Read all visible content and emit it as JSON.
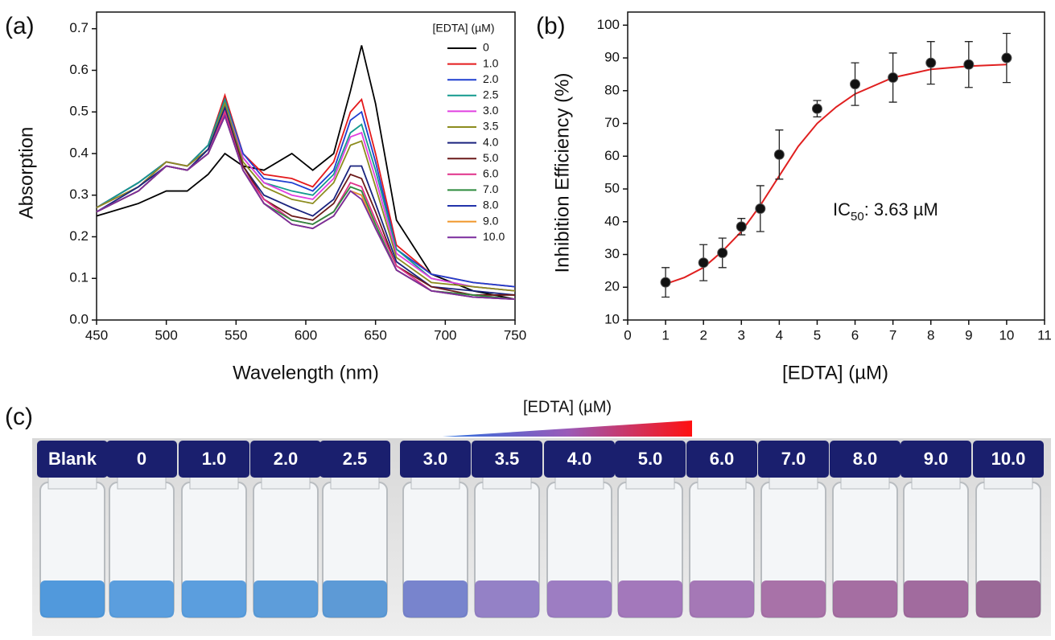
{
  "chart_data": [
    {
      "type": "line",
      "panel": "(a)",
      "x_label": "Wavelength (nm)",
      "y_label": "Absorption",
      "legend_title": "[EDTA] (µM)",
      "x": [
        450,
        480,
        500,
        515,
        530,
        542,
        555,
        570,
        590,
        605,
        620,
        632,
        640,
        650,
        665,
        690,
        720,
        750
      ],
      "xlim": [
        450,
        750
      ],
      "xticks": [
        450,
        500,
        550,
        600,
        650,
        700,
        750
      ],
      "ylim": [
        0,
        0.74
      ],
      "yticks": [
        {
          "value": 0,
          "label": "0.0"
        },
        0.1,
        0.2,
        0.3,
        0.4,
        0.5,
        0.6,
        0.7
      ],
      "series": [
        {
          "name": "0",
          "color": "#000000",
          "values": [
            0.25,
            0.28,
            0.31,
            0.31,
            0.35,
            0.4,
            0.37,
            0.36,
            0.4,
            0.36,
            0.4,
            0.55,
            0.66,
            0.52,
            0.24,
            0.11,
            0.07,
            0.05
          ]
        },
        {
          "name": "1.0",
          "color": "#e41a1c",
          "values": [
            0.27,
            0.33,
            0.38,
            0.37,
            0.42,
            0.54,
            0.4,
            0.35,
            0.34,
            0.32,
            0.38,
            0.5,
            0.53,
            0.4,
            0.18,
            0.11,
            0.09,
            0.08
          ]
        },
        {
          "name": "2.0",
          "color": "#1f3fd0",
          "values": [
            0.27,
            0.33,
            0.38,
            0.37,
            0.42,
            0.53,
            0.4,
            0.34,
            0.33,
            0.31,
            0.36,
            0.48,
            0.5,
            0.38,
            0.17,
            0.11,
            0.09,
            0.08
          ]
        },
        {
          "name": "2.5",
          "color": "#139a8e",
          "values": [
            0.27,
            0.33,
            0.38,
            0.37,
            0.42,
            0.53,
            0.39,
            0.33,
            0.31,
            0.3,
            0.35,
            0.45,
            0.47,
            0.36,
            0.17,
            0.1,
            0.08,
            0.07
          ]
        },
        {
          "name": "3.0",
          "color": "#e040e0",
          "values": [
            0.27,
            0.32,
            0.38,
            0.37,
            0.41,
            0.52,
            0.39,
            0.33,
            0.3,
            0.29,
            0.34,
            0.44,
            0.45,
            0.34,
            0.16,
            0.1,
            0.08,
            0.07
          ]
        },
        {
          "name": "3.5",
          "color": "#8c8c1e",
          "values": [
            0.27,
            0.32,
            0.38,
            0.37,
            0.41,
            0.52,
            0.38,
            0.32,
            0.29,
            0.28,
            0.33,
            0.42,
            0.43,
            0.32,
            0.15,
            0.09,
            0.08,
            0.07
          ]
        },
        {
          "name": "4.0",
          "color": "#1a237e",
          "values": [
            0.26,
            0.32,
            0.37,
            0.36,
            0.41,
            0.51,
            0.37,
            0.3,
            0.27,
            0.25,
            0.29,
            0.37,
            0.37,
            0.28,
            0.14,
            0.08,
            0.07,
            0.06
          ]
        },
        {
          "name": "5.0",
          "color": "#6b1a1a",
          "values": [
            0.26,
            0.31,
            0.37,
            0.36,
            0.4,
            0.5,
            0.37,
            0.29,
            0.25,
            0.24,
            0.28,
            0.35,
            0.34,
            0.26,
            0.13,
            0.08,
            0.06,
            0.06
          ]
        },
        {
          "name": "6.0",
          "color": "#e0308a",
          "values": [
            0.26,
            0.31,
            0.37,
            0.36,
            0.4,
            0.5,
            0.36,
            0.29,
            0.24,
            0.23,
            0.26,
            0.33,
            0.32,
            0.24,
            0.13,
            0.07,
            0.06,
            0.05
          ]
        },
        {
          "name": "7.0",
          "color": "#2e8b3e",
          "values": [
            0.26,
            0.31,
            0.37,
            0.36,
            0.4,
            0.49,
            0.36,
            0.28,
            0.24,
            0.23,
            0.26,
            0.32,
            0.31,
            0.23,
            0.12,
            0.07,
            0.06,
            0.05
          ]
        },
        {
          "name": "8.0",
          "color": "#2233aa",
          "values": [
            0.26,
            0.31,
            0.37,
            0.36,
            0.4,
            0.49,
            0.36,
            0.28,
            0.23,
            0.22,
            0.25,
            0.31,
            0.3,
            0.22,
            0.12,
            0.07,
            0.055,
            0.05
          ]
        },
        {
          "name": "9.0",
          "color": "#f0962a",
          "values": [
            0.26,
            0.31,
            0.37,
            0.36,
            0.4,
            0.49,
            0.36,
            0.28,
            0.23,
            0.22,
            0.25,
            0.31,
            0.3,
            0.22,
            0.12,
            0.07,
            0.055,
            0.05
          ]
        },
        {
          "name": "10.0",
          "color": "#7b2c9e",
          "values": [
            0.26,
            0.31,
            0.37,
            0.36,
            0.4,
            0.49,
            0.36,
            0.28,
            0.23,
            0.22,
            0.25,
            0.31,
            0.29,
            0.22,
            0.12,
            0.07,
            0.055,
            0.05
          ]
        }
      ]
    },
    {
      "type": "scatter",
      "panel": "(b)",
      "x_label": "[EDTA] (µM)",
      "y_label": "Inhibition Efficiency (%)",
      "annotation": {
        "text": "IC",
        "subscript": "50",
        "suffix": ": 3.63 µM"
      },
      "xlim": [
        0,
        11
      ],
      "xticks": [
        0,
        1,
        2,
        3,
        4,
        5,
        6,
        7,
        8,
        9,
        10,
        11
      ],
      "ylim": [
        10,
        104
      ],
      "yticks": [
        10,
        20,
        30,
        40,
        50,
        60,
        70,
        80,
        90,
        100
      ],
      "x": [
        1,
        2,
        2.5,
        3,
        3.5,
        4,
        5,
        6,
        7,
        8,
        9,
        10
      ],
      "values": [
        21.5,
        27.5,
        30.5,
        38.5,
        44,
        60.5,
        74.5,
        82,
        84,
        88.5,
        88,
        90
      ],
      "errors": [
        4.5,
        5.5,
        4.5,
        2.5,
        7,
        7.5,
        2.5,
        6.5,
        7.5,
        6.5,
        7,
        7.5
      ],
      "color": "#111111",
      "fit": {
        "color": "#e02020",
        "x": [
          1,
          1.5,
          2,
          2.5,
          3,
          3.5,
          4,
          4.5,
          5,
          5.5,
          6,
          7,
          8,
          9,
          10
        ],
        "values": [
          21,
          23,
          26,
          31,
          37,
          45,
          54,
          63,
          70,
          75,
          79,
          84,
          86.5,
          87.5,
          88
        ]
      }
    }
  ],
  "photo": {
    "panel": "(c)",
    "gradient_label": "[EDTA] (µM)",
    "vials": [
      {
        "label": "Blank",
        "color": "#3f8fd8"
      },
      {
        "label": "0",
        "color": "#4a95da"
      },
      {
        "label": "1.0",
        "color": "#4a95da"
      },
      {
        "label": "2.0",
        "color": "#4c93d6"
      },
      {
        "label": "2.5",
        "color": "#4d90d2"
      },
      {
        "label": "3.0",
        "color": "#6a78c8"
      },
      {
        "label": "3.5",
        "color": "#8a74c0"
      },
      {
        "label": "4.0",
        "color": "#9470bb"
      },
      {
        "label": "5.0",
        "color": "#9a6ab4"
      },
      {
        "label": "6.0",
        "color": "#9c6aae"
      },
      {
        "label": "7.0",
        "color": "#a0649e"
      },
      {
        "label": "8.0",
        "color": "#9c5f98"
      },
      {
        "label": "9.0",
        "color": "#985c94"
      },
      {
        "label": "10.0",
        "color": "#905a8c"
      }
    ]
  }
}
